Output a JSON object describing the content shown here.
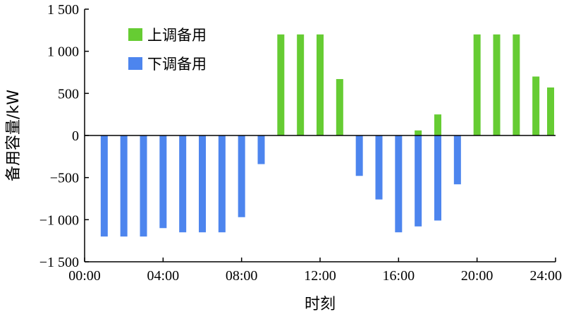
{
  "chart_data": {
    "type": "bar",
    "xlabel": "时刻",
    "ylabel": "备用容量/kW",
    "ylim": [
      -1500,
      1500
    ],
    "xlim": [
      0,
      24
    ],
    "y_ticks": [
      -1500,
      -1000,
      -500,
      0,
      500,
      1000,
      1500
    ],
    "y_tick_labels": [
      "−1 500",
      "−1 000",
      "−500",
      "0",
      "500",
      "1 000",
      "1 500"
    ],
    "x_ticks": [
      0,
      4,
      8,
      12,
      16,
      20,
      24
    ],
    "x_tick_labels": [
      "00:00",
      "04:00",
      "08:00",
      "12:00",
      "16:00",
      "20:00",
      "24:00"
    ],
    "legend_position": "top-left",
    "series": [
      {
        "name": "上调备用",
        "color": "#66cc33",
        "x": [
          10,
          11,
          12,
          13,
          17,
          18,
          20,
          21,
          22,
          23,
          24
        ],
        "values": [
          1200,
          1200,
          1200,
          670,
          60,
          250,
          1200,
          1200,
          1200,
          700,
          570
        ]
      },
      {
        "name": "下调备用",
        "color": "#4d85ee",
        "x": [
          1,
          2,
          3,
          4,
          5,
          6,
          7,
          8,
          9,
          14,
          15,
          16,
          17,
          18,
          19
        ],
        "values": [
          -1200,
          -1200,
          -1200,
          -1100,
          -1150,
          -1150,
          -1150,
          -970,
          -340,
          -480,
          -760,
          -1150,
          -1080,
          -1010,
          -580
        ]
      }
    ]
  }
}
